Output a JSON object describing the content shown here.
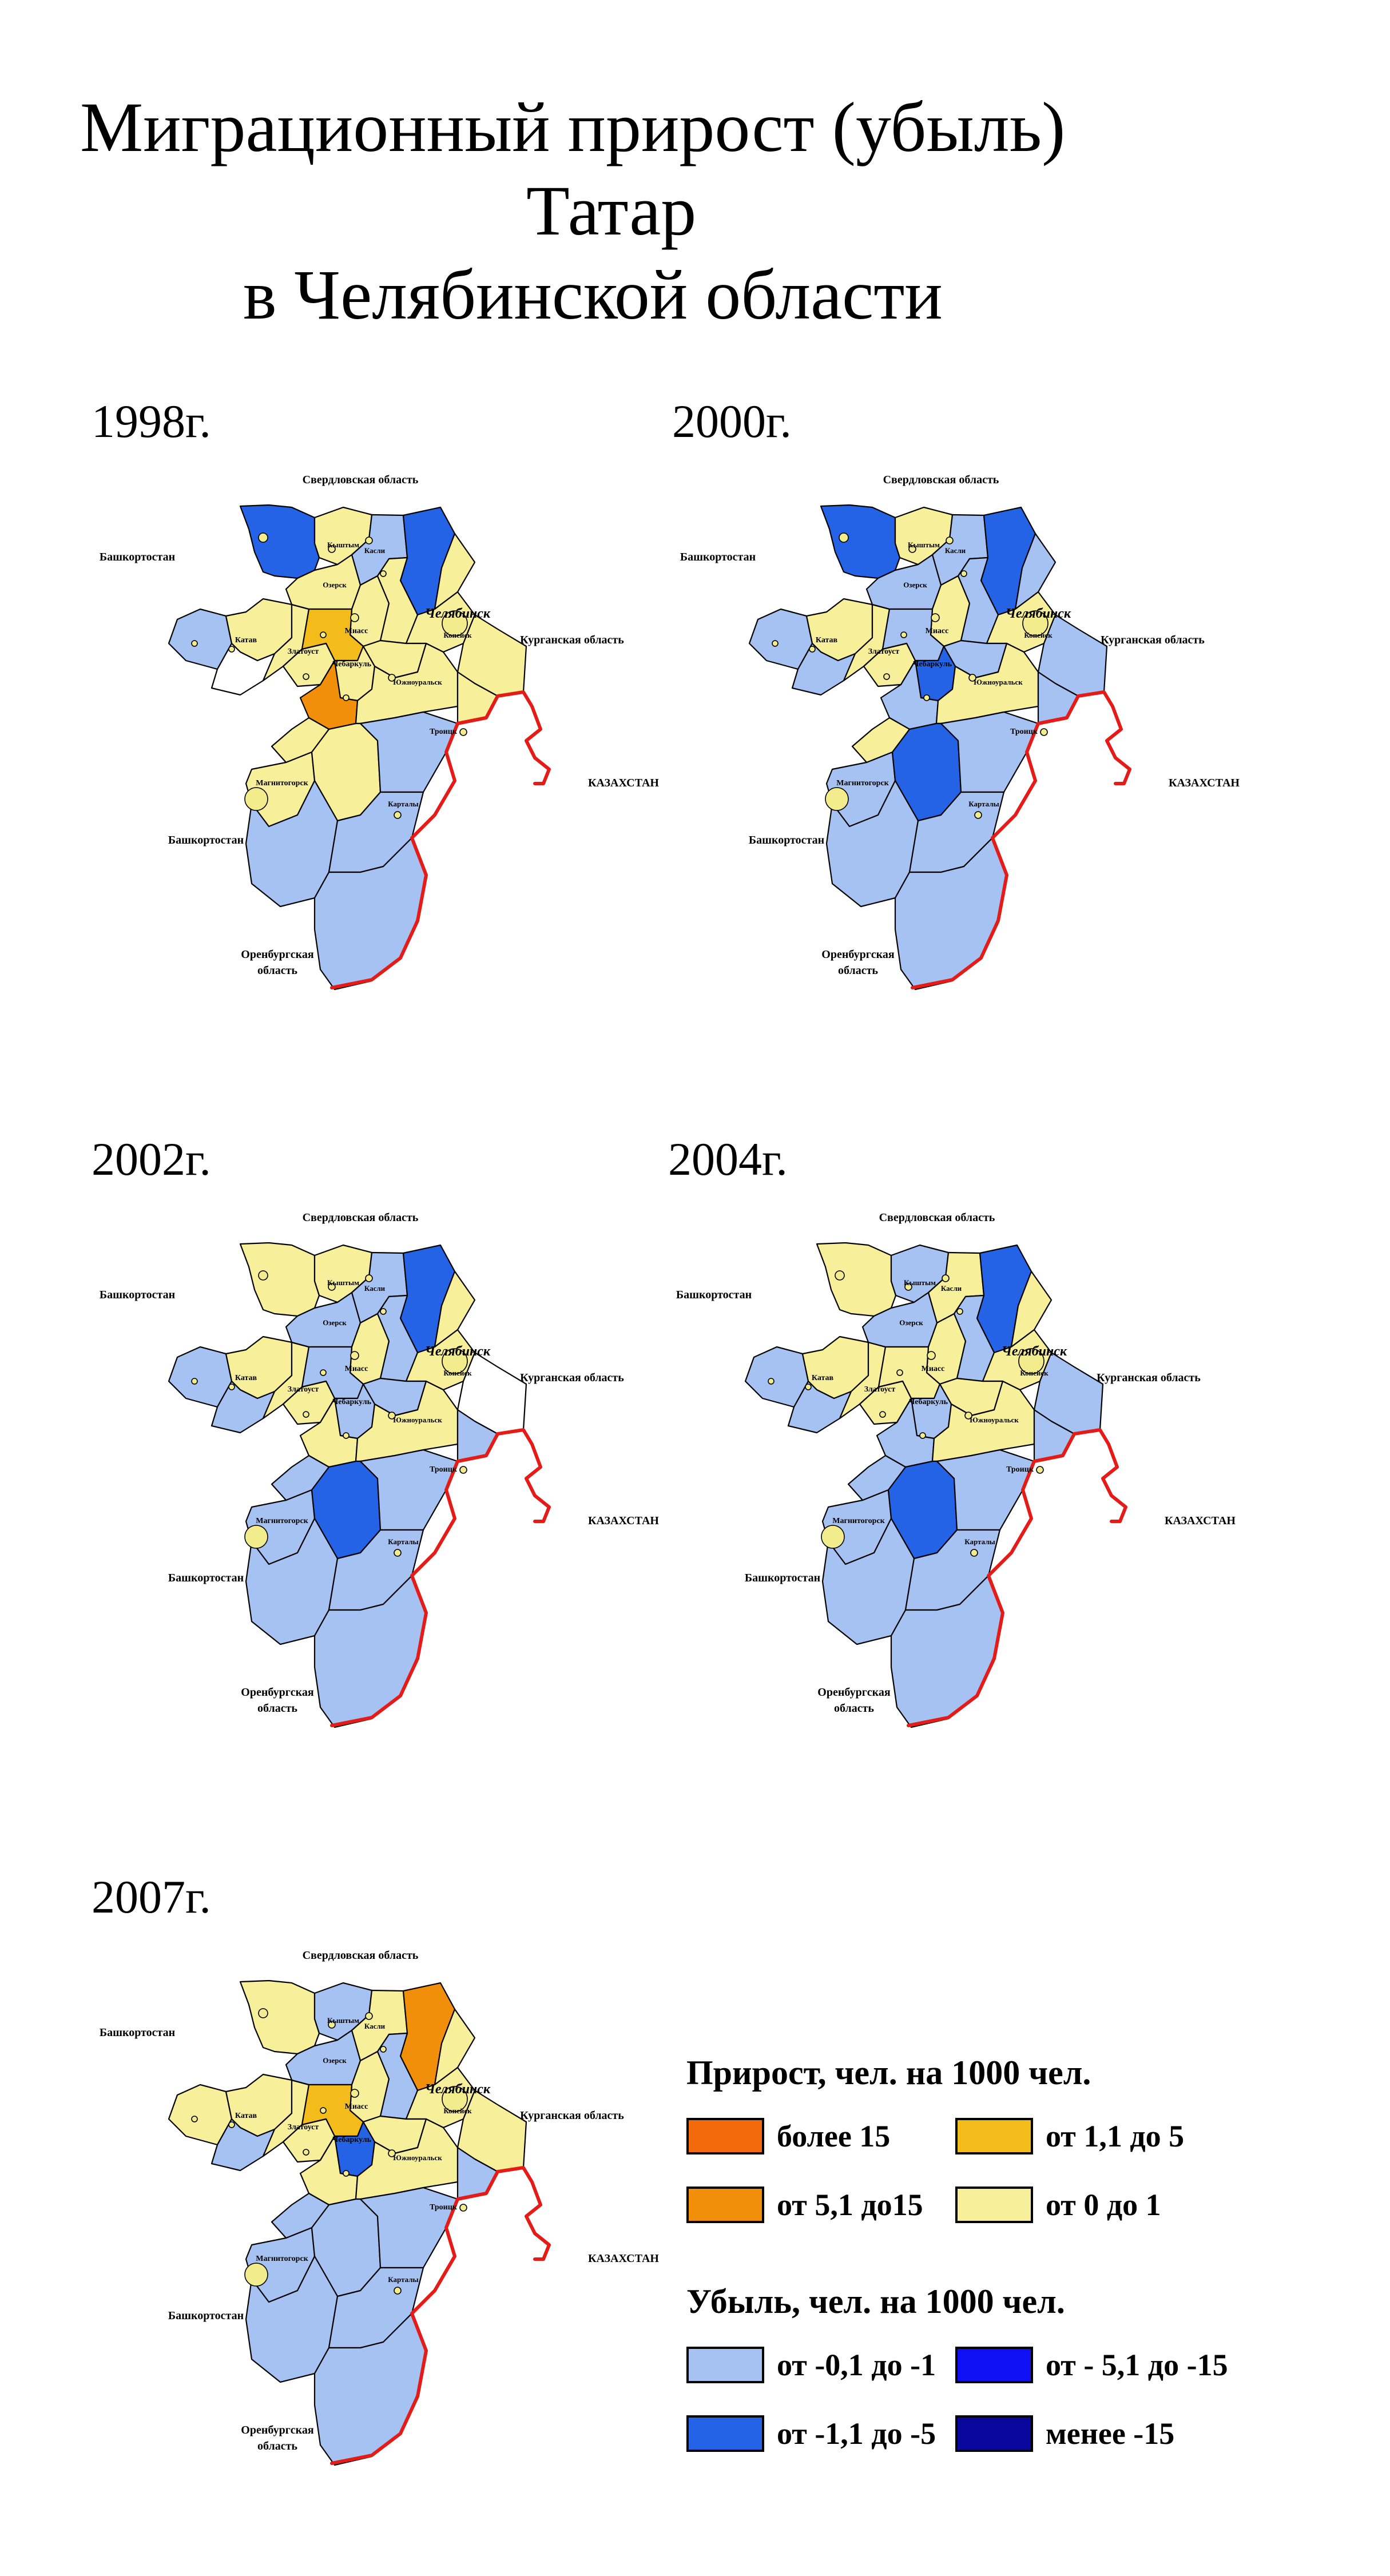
{
  "title": {
    "line1": "Миграционный прирост (убыль)",
    "line2": "Татар",
    "line3": "в Челябинской области"
  },
  "colors": {
    "more_15": "#f26a0c",
    "5_1_15": "#f28f0a",
    "1_1_5": "#f3bc1b",
    "0_1": "#f7ef9a",
    "m01_m1": "#a6c2f2",
    "m11_m5": "#2563e6",
    "m51_m15": "#1010f5",
    "less_m15": "#07079c",
    "none": "#ffffff",
    "border_kz": "#e41b17",
    "outline": "#000000"
  },
  "labels": {
    "sverdlovsk": "Свердловская область",
    "bashkortostan": "Башкортостан",
    "kurgan": "Курганская область",
    "kazakhstan": "КАЗАХСТАН",
    "orenburg_1": "Оренбургская",
    "orenburg_2": "область",
    "chelyabinsk": "Челябинск",
    "kyshtym": "Кыштым",
    "kasli": "Касли",
    "ozersk": "Озерск",
    "miass": "Миасс",
    "zlatoust": "Златоуст",
    "katav": "Катав",
    "yuzhnouralsk": "Южноуральск",
    "troitsk": "Троицк",
    "magnitogorsk": "Магнитогорск",
    "kartaly": "Карталы",
    "kopeysk": "Копейск",
    "chebarkul": "Чебаркуль"
  },
  "maps": [
    {
      "year": "1998г.",
      "regions": {
        "nw": "m11_m5",
        "nw2": "0_1",
        "n1": "m01_m1",
        "ne": "m11_m5",
        "ne2": "0_1",
        "w1": "m01_m1",
        "w2": "0_1",
        "w3": "none",
        "w4": "0_1",
        "c1": "0_1",
        "c2": "0_1",
        "c3": "1_1_5",
        "c4": "0_1",
        "c5": "0_1",
        "e1": "0_1",
        "e2": "0_1",
        "e3": "0_1",
        "cs1": "0_1",
        "cs2": "5_1_15",
        "cs3": "0_1",
        "cs4": "0_1",
        "s1": "0_1",
        "s2": "0_1",
        "s3": "0_1",
        "s4": "m01_m1",
        "s5": "m01_m1",
        "s6": "m01_m1",
        "s7": "m01_m1"
      }
    },
    {
      "year": "2000г.",
      "regions": {
        "nw": "m11_m5",
        "nw2": "0_1",
        "n1": "m01_m1",
        "ne": "m11_m5",
        "ne2": "m01_m1",
        "w1": "m01_m1",
        "w2": "0_1",
        "w3": "m01_m1",
        "w4": "0_1",
        "c1": "m01_m1",
        "c2": "0_1",
        "c3": "m01_m1",
        "c4": "0_1",
        "c5": "m01_m1",
        "e1": "0_1",
        "e2": "m01_m1",
        "e3": "m01_m1",
        "cs1": "m11_m5",
        "cs2": "m01_m1",
        "cs3": "0_1",
        "cs4": "m01_m1",
        "s1": "m01_m1",
        "s2": "m11_m5",
        "s3": "0_1",
        "s4": "m01_m1",
        "s5": "m01_m1",
        "s6": "m01_m1",
        "s7": "m01_m1"
      }
    },
    {
      "year": "2002г.",
      "regions": {
        "nw": "0_1",
        "nw2": "0_1",
        "n1": "m01_m1",
        "ne": "m11_m5",
        "ne2": "0_1",
        "w1": "m01_m1",
        "w2": "0_1",
        "w3": "m01_m1",
        "w4": "0_1",
        "c1": "m01_m1",
        "c2": "0_1",
        "c3": "m01_m1",
        "c4": "0_1",
        "c5": "m01_m1",
        "e1": "0_1",
        "e2": "m01_m1",
        "e3": "none",
        "cs1": "m01_m1",
        "cs2": "0_1",
        "cs3": "0_1",
        "cs4": "m01_m1",
        "s1": "m01_m1",
        "s2": "m11_m5",
        "s3": "m01_m1",
        "s4": "m01_m1",
        "s5": "m01_m1",
        "s6": "m01_m1",
        "s7": "m01_m1"
      }
    },
    {
      "year": "2004г.",
      "regions": {
        "nw": "0_1",
        "nw2": "m01_m1",
        "n1": "0_1",
        "ne": "m11_m5",
        "ne2": "0_1",
        "w1": "m01_m1",
        "w2": "0_1",
        "w3": "m01_m1",
        "w4": "0_1",
        "c1": "m01_m1",
        "c2": "0_1",
        "c3": "0_1",
        "c4": "0_1",
        "c5": "m01_m1",
        "e1": "0_1",
        "e2": "0_1",
        "e3": "m01_m1",
        "cs1": "m01_m1",
        "cs2": "m01_m1",
        "cs3": "0_1",
        "cs4": "m01_m1",
        "s1": "m01_m1",
        "s2": "m11_m5",
        "s3": "m01_m1",
        "s4": "m01_m1",
        "s5": "m01_m1",
        "s6": "m01_m1",
        "s7": "m01_m1"
      }
    },
    {
      "year": "2007г.",
      "regions": {
        "nw": "0_1",
        "nw2": "m01_m1",
        "n1": "0_1",
        "ne": "5_1_15",
        "ne2": "0_1",
        "w1": "0_1",
        "w2": "0_1",
        "w3": "m01_m1",
        "w4": "0_1",
        "c1": "m01_m1",
        "c2": "0_1",
        "c3": "1_1_5",
        "c4": "0_1",
        "c5": "m01_m1",
        "e1": "0_1",
        "e2": "0_1",
        "e3": "0_1",
        "cs1": "m11_m5",
        "cs2": "0_1",
        "cs3": "0_1",
        "cs4": "m01_m1",
        "s1": "m01_m1",
        "s2": "m01_m1",
        "s3": "m01_m1",
        "s4": "m01_m1",
        "s5": "m01_m1",
        "s6": "m01_m1",
        "s7": "m01_m1"
      }
    }
  ],
  "legend": {
    "gain_title": "Прирост, чел. на 1000 чел.",
    "loss_title": "Убыль, чел. на 1000 чел.",
    "items": [
      {
        "label": "более 15",
        "color_key": "more_15"
      },
      {
        "label": "от 1,1 до 5",
        "color_key": "1_1_5"
      },
      {
        "label": "от 5,1 до15",
        "color_key": "5_1_15"
      },
      {
        "label": "от 0 до 1",
        "color_key": "0_1"
      },
      {
        "label": "от -0,1 до -1",
        "color_key": "m01_m1"
      },
      {
        "label": "от - 5,1 до -15",
        "color_key": "m51_m15"
      },
      {
        "label": "от -1,1 до -5",
        "color_key": "m11_m5"
      },
      {
        "label": "менее -15",
        "color_key": "less_m15"
      }
    ]
  }
}
